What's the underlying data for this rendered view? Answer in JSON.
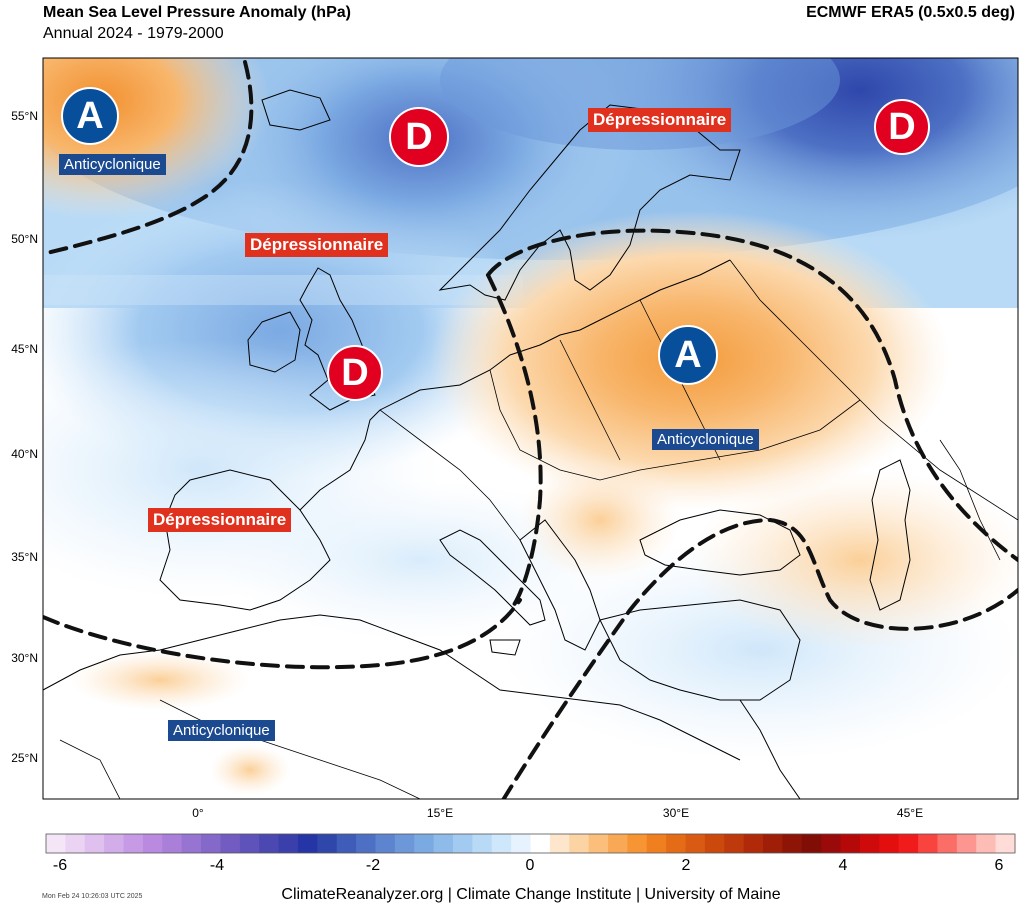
{
  "header": {
    "title": "Mean Sea Level Pressure Anomaly (hPa)",
    "subtitle": "Annual 2024 - 1979-2000",
    "source": "ECMWF ERA5 (0.5x0.5 deg)"
  },
  "axes": {
    "lat_labels": [
      "55°N",
      "50°N",
      "45°N",
      "40°N",
      "35°N",
      "30°N",
      "25°N"
    ],
    "lon_labels": [
      "0°",
      "15°E",
      "30°E",
      "45°E"
    ]
  },
  "colorbar": {
    "ticks": [
      "-6",
      "-4",
      "-2",
      "0",
      "2",
      "4",
      "6"
    ],
    "colors": [
      "#f4e6f7",
      "#ead3f3",
      "#dfc0ef",
      "#d3adea",
      "#c79ae6",
      "#ba8ae1",
      "#a97fda",
      "#9773d2",
      "#8468ca",
      "#725cc2",
      "#5f52ba",
      "#4c48b2",
      "#3a3fab",
      "#2535a5",
      "#2f47ab",
      "#3e5cb8",
      "#4d70c4",
      "#5d84cf",
      "#6c97d9",
      "#7ba9e2",
      "#8ebbea",
      "#a3cbf1",
      "#b8daf6",
      "#cfe7fa",
      "#e6f2fd",
      "#ffffff",
      "#fde6cc",
      "#fcd3a3",
      "#fbbf7b",
      "#f9a955",
      "#f79433",
      "#f07f20",
      "#e56c17",
      "#d95a12",
      "#cc490e",
      "#be390b",
      "#b02a09",
      "#9f1e07",
      "#8e1406",
      "#800d06",
      "#9a0a0a",
      "#b50909",
      "#cf0a0a",
      "#e30e0e",
      "#f21b1b",
      "#f8433f",
      "#fb6e68",
      "#fd9691",
      "#febcb7",
      "#ffdcd8"
    ]
  },
  "labels": {
    "anticyclonique": "Anticyclonique",
    "depressionnaire": "Dépressionnaire",
    "marker_d": "D",
    "marker_a": "A"
  },
  "footer": {
    "credit": "ClimateReanalyzer.org | Climate Change Institute | University of Maine",
    "timestamp": "Mon Feb 24 10:26:03 UTC 2025"
  },
  "style": {
    "high_color": "#084f9b",
    "low_color": "#e1001f"
  }
}
